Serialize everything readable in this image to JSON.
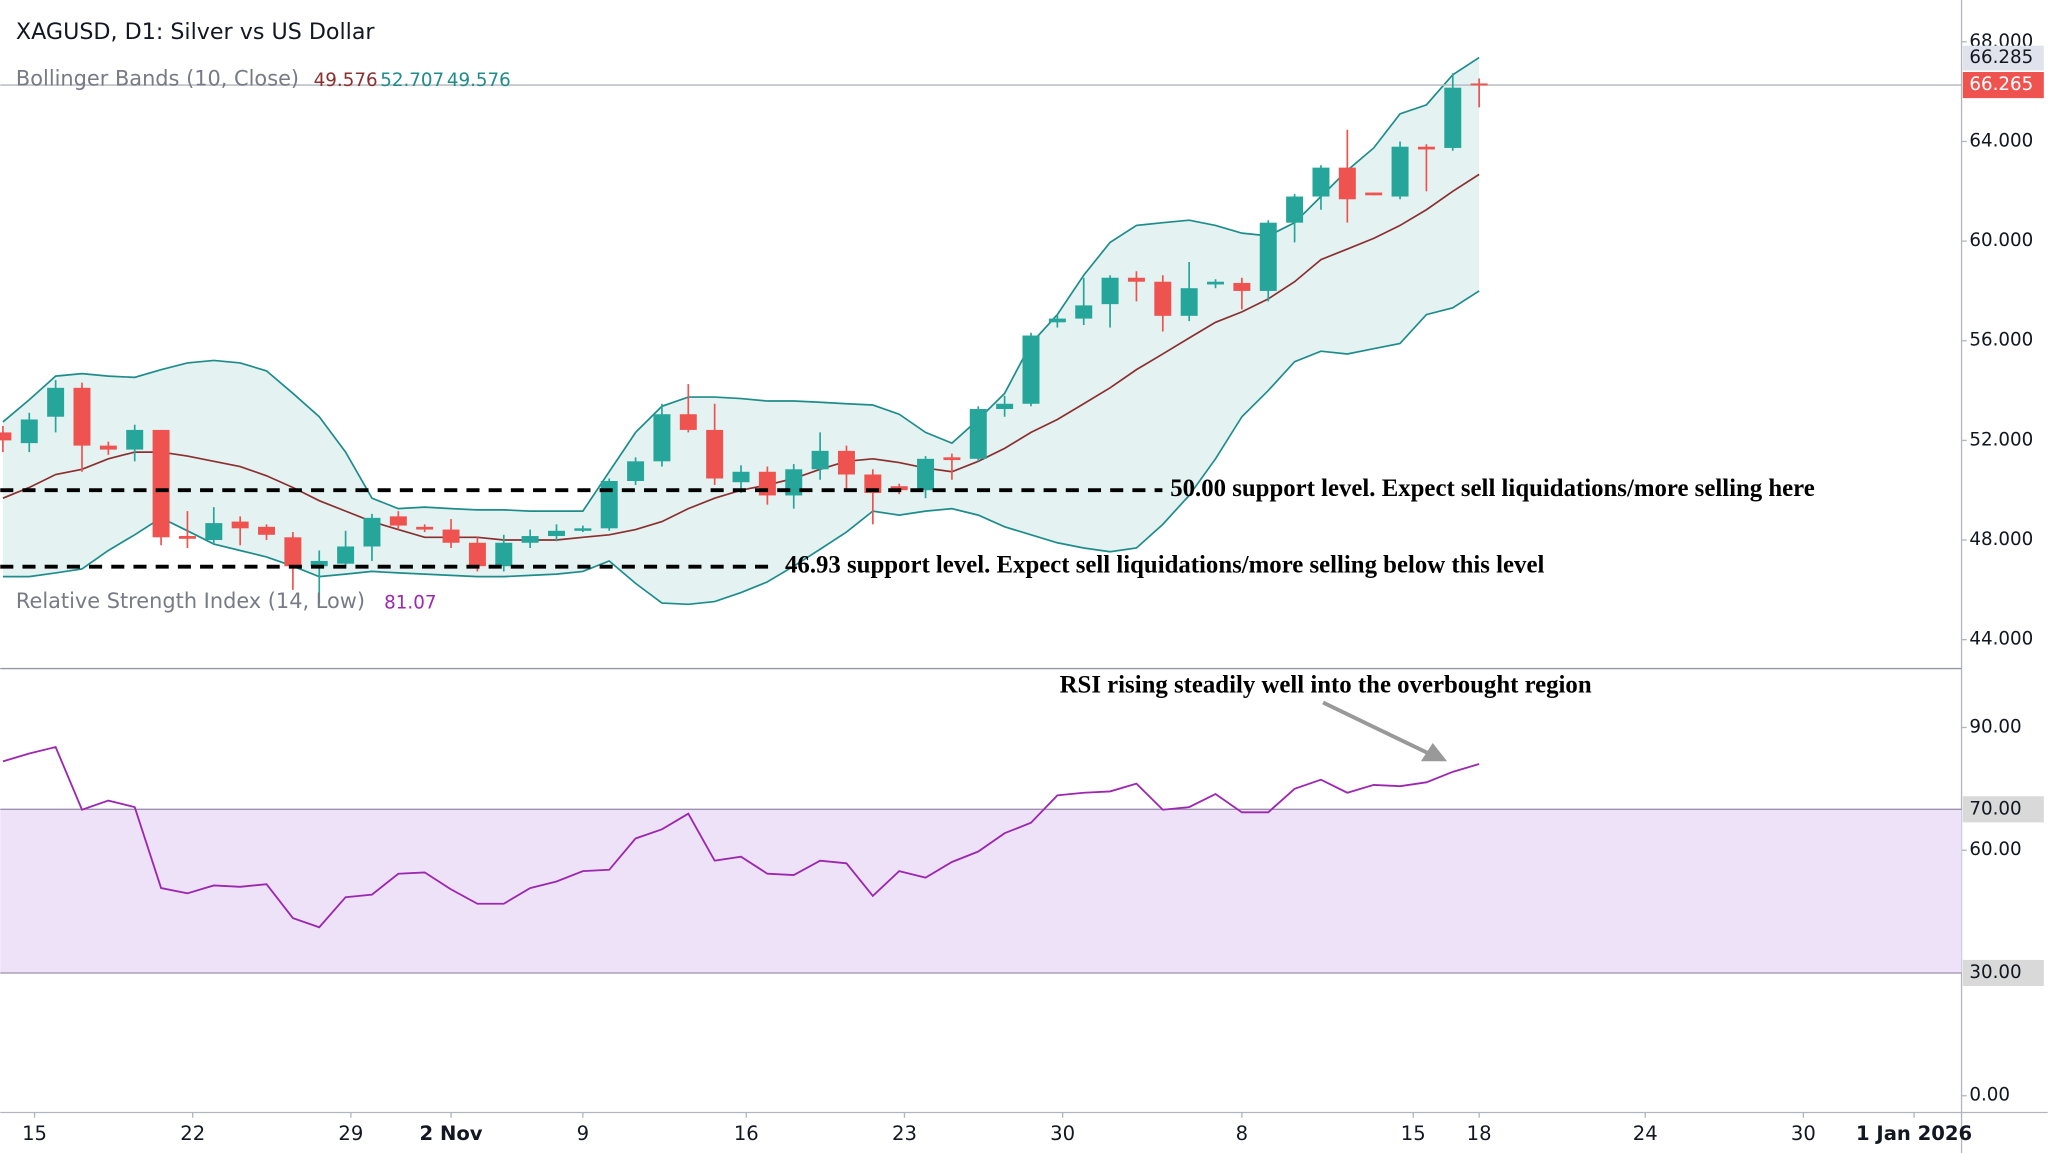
{
  "chart_data": [
    {
      "type": "candlestick",
      "title": "XAGUSD, D1: Silver vs US Dollar",
      "open": [
        52.32,
        51.89,
        52.95,
        54.11,
        51.79,
        51.63,
        52.42,
        48.16,
        48.0,
        48.74,
        48.53,
        48.11,
        46.95,
        47.05,
        47.74,
        48.95,
        48.53,
        48.42,
        47.89,
        46.95,
        47.89,
        48.16,
        48.37,
        48.47,
        50.37,
        51.16,
        53.05,
        52.42,
        50.32,
        50.74,
        49.79,
        50.84,
        51.58,
        50.63,
        50.16,
        50.0,
        51.32,
        51.26,
        53.26,
        53.47,
        56.74,
        56.89,
        57.47,
        58.53,
        58.37,
        57.0,
        58.26,
        58.32,
        58.0,
        60.74,
        61.79,
        62.95,
        61.95,
        61.79,
        63.79,
        63.74,
        66.33
      ],
      "high": [
        52.58,
        53.11,
        54.42,
        54.32,
        51.95,
        52.63,
        52.42,
        49.16,
        49.32,
        48.95,
        48.63,
        48.32,
        47.58,
        48.37,
        49.05,
        49.16,
        48.63,
        48.84,
        48.11,
        48.21,
        48.42,
        48.63,
        48.58,
        50.47,
        51.32,
        53.47,
        54.26,
        53.47,
        51.0,
        50.95,
        51.05,
        52.32,
        51.79,
        50.84,
        50.26,
        51.37,
        51.47,
        53.37,
        53.79,
        56.32,
        57.05,
        58.53,
        58.63,
        58.79,
        58.63,
        59.16,
        58.47,
        58.53,
        60.84,
        61.89,
        63.05,
        64.47,
        61.95,
        64.0,
        63.89,
        66.74,
        66.53
      ],
      "low": [
        51.53,
        51.53,
        52.32,
        50.74,
        51.42,
        51.16,
        47.79,
        47.68,
        47.84,
        47.79,
        48.0,
        46.0,
        45.47,
        46.95,
        47.16,
        48.42,
        48.32,
        47.68,
        46.74,
        46.74,
        47.68,
        47.95,
        48.32,
        48.37,
        50.21,
        50.95,
        52.32,
        50.21,
        49.89,
        49.42,
        49.26,
        50.42,
        49.95,
        48.63,
        49.84,
        49.68,
        50.42,
        51.16,
        52.95,
        53.37,
        56.53,
        56.63,
        56.53,
        57.58,
        56.37,
        56.79,
        58.11,
        57.26,
        57.58,
        59.95,
        61.26,
        60.74,
        61.84,
        61.68,
        62.0,
        63.63,
        65.37
      ],
      "close": [
        52.0,
        52.84,
        54.11,
        51.79,
        51.63,
        52.42,
        48.11,
        48.05,
        48.68,
        48.47,
        48.21,
        46.95,
        47.16,
        47.74,
        48.89,
        48.58,
        48.42,
        47.89,
        46.95,
        47.89,
        48.16,
        48.37,
        48.47,
        50.37,
        51.16,
        53.05,
        52.42,
        50.47,
        50.74,
        49.79,
        50.84,
        51.58,
        50.63,
        49.89,
        50.0,
        51.26,
        51.21,
        53.26,
        53.47,
        56.21,
        56.89,
        57.42,
        58.53,
        58.37,
        57.0,
        58.11,
        58.37,
        58.0,
        60.74,
        61.79,
        62.95,
        61.68,
        61.84,
        63.79,
        63.68,
        66.16,
        66.265
      ],
      "up_color": "#26a69a",
      "down_color": "#ef5350",
      "overlay": {
        "title": "Bollinger Bands (10, Close)",
        "legend_values": [
          49.576,
          52.707,
          49.576
        ],
        "colors": [
          "#8b2f2f",
          "#1f8c8c",
          "#1f8c8c"
        ],
        "fill": "#e4f2f2",
        "basis": [
          49.68,
          50.11,
          50.63,
          50.84,
          51.26,
          51.53,
          51.53,
          51.37,
          51.16,
          50.95,
          50.58,
          50.11,
          49.58,
          49.16,
          48.74,
          48.42,
          48.11,
          48.11,
          48.11,
          48.0,
          48.0,
          48.0,
          48.11,
          48.21,
          48.42,
          48.74,
          49.26,
          49.68,
          50.0,
          50.21,
          50.47,
          50.84,
          51.16,
          51.26,
          51.11,
          50.89,
          50.74,
          51.16,
          51.68,
          52.32,
          52.84,
          53.47,
          54.11,
          54.84,
          55.47,
          56.11,
          56.74,
          57.16,
          57.68,
          58.37,
          59.26,
          59.68,
          60.11,
          60.63,
          61.26,
          62.0,
          62.68
        ],
        "upper": [
          52.74,
          53.63,
          54.58,
          54.68,
          54.58,
          54.53,
          54.84,
          55.11,
          55.21,
          55.11,
          54.79,
          53.89,
          52.95,
          51.53,
          49.68,
          49.26,
          49.32,
          49.26,
          49.21,
          49.21,
          49.16,
          49.16,
          49.16,
          50.74,
          52.32,
          53.37,
          53.74,
          53.74,
          53.68,
          53.58,
          53.58,
          53.53,
          53.47,
          53.42,
          53.05,
          52.32,
          51.89,
          52.84,
          53.89,
          55.89,
          57.05,
          58.63,
          59.95,
          60.63,
          60.74,
          60.84,
          60.63,
          60.32,
          60.21,
          60.74,
          61.79,
          62.84,
          63.74,
          65.11,
          65.47,
          66.68,
          67.37
        ],
        "lower": [
          46.53,
          46.53,
          46.68,
          46.84,
          47.58,
          48.21,
          48.89,
          48.37,
          47.84,
          47.58,
          47.32,
          46.95,
          46.53,
          46.63,
          46.74,
          46.68,
          46.63,
          46.58,
          46.53,
          46.53,
          46.58,
          46.63,
          46.74,
          47.16,
          46.26,
          45.47,
          45.42,
          45.53,
          45.89,
          46.32,
          46.95,
          47.63,
          48.32,
          49.16,
          49.0,
          49.16,
          49.26,
          49.0,
          48.53,
          48.21,
          47.89,
          47.68,
          47.53,
          47.68,
          48.63,
          49.79,
          51.26,
          52.95,
          54.0,
          55.16,
          55.58,
          55.47,
          55.68,
          55.89,
          57.05,
          57.32,
          58.0
        ]
      },
      "ylim": [
        42.84,
        69.68
      ],
      "yticks": [
        {
          "value": 44,
          "label": "44.000"
        },
        {
          "value": 48,
          "label": "48.000"
        },
        {
          "value": 52,
          "label": "52.000"
        },
        {
          "value": 56,
          "label": "56.000"
        },
        {
          "value": 60,
          "label": "60.000"
        },
        {
          "value": 64,
          "label": "64.000"
        },
        {
          "value": 68,
          "label": "68.000"
        }
      ],
      "xlim": [
        -0.1,
        74.3
      ],
      "xticks": [
        {
          "value": 1.2,
          "label": "15"
        },
        {
          "value": 7.2,
          "label": "22"
        },
        {
          "value": 13.2,
          "label": "29"
        },
        {
          "value": 17.0,
          "label": "2 Nov",
          "bold": true
        },
        {
          "value": 22.0,
          "label": "9"
        },
        {
          "value": 28.2,
          "label": "16"
        },
        {
          "value": 34.2,
          "label": "23"
        },
        {
          "value": 40.2,
          "label": "30"
        },
        {
          "value": 47.0,
          "label": "8"
        },
        {
          "value": 53.5,
          "label": "15"
        },
        {
          "value": 56.0,
          "label": "18"
        },
        {
          "value": 62.3,
          "label": "24"
        },
        {
          "value": 68.3,
          "label": "30"
        },
        {
          "value": 72.5,
          "label": "1 Jan 2026",
          "bold": true
        }
      ],
      "high_label": 66.285,
      "last_price": 66.265,
      "annotations": [
        {
          "value": 50,
          "text": "50.00 support level. Expect sell liquidations/more selling here"
        },
        {
          "value": 46.93,
          "text": "46.93 support level. Expect sell liquidations/more selling below this level"
        }
      ]
    },
    {
      "type": "line",
      "title": "Relative Strength Index (14, Low)",
      "legend_value": 81.07,
      "color": "#9c27b0",
      "values": [
        81.71,
        83.63,
        85.22,
        69.9,
        72.14,
        70.54,
        50.75,
        49.47,
        51.39,
        51.07,
        51.71,
        43.41,
        41.17,
        48.52,
        49.15,
        54.26,
        54.58,
        50.43,
        46.92,
        46.92,
        50.75,
        52.35,
        54.9,
        55.22,
        62.88,
        65.11,
        68.94,
        57.45,
        58.41,
        54.26,
        53.94,
        57.45,
        56.81,
        48.83,
        54.9,
        53.3,
        57.13,
        59.69,
        64.16,
        66.71,
        73.41,
        74.05,
        74.37,
        76.28,
        69.9,
        70.54,
        73.73,
        69.26,
        69.26,
        75.01,
        77.24,
        74.05,
        75.96,
        75.65,
        76.6,
        79.16,
        81.07
      ],
      "ylim": [
        -4.1,
        104.4
      ],
      "yticks": [
        {
          "value": 0,
          "label": "0.00"
        },
        {
          "value": 60,
          "label": "60.00"
        },
        {
          "value": 90,
          "label": "90.00"
        }
      ],
      "band": [
        {
          "value": 30,
          "label": "30.00"
        },
        {
          "value": 70,
          "label": "70.00"
        }
      ],
      "band_color": "#ede2f8",
      "annotation": "RSI rising steadily well into the overbought region"
    }
  ]
}
